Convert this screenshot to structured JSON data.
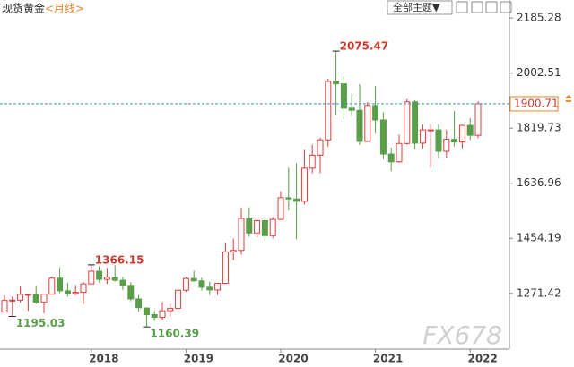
{
  "chart_data": {
    "type": "candlestick",
    "title": "现货黄金",
    "subtitle": "<月线>",
    "categories": [
      null,
      null,
      null,
      null,
      null,
      null,
      null,
      null,
      null,
      null,
      null,
      "2018",
      null,
      null,
      null,
      null,
      null,
      null,
      null,
      null,
      null,
      null,
      null,
      "2019",
      null,
      null,
      null,
      null,
      null,
      null,
      null,
      null,
      null,
      null,
      null,
      "2020",
      null,
      null,
      null,
      null,
      null,
      null,
      null,
      null,
      null,
      null,
      null,
      "2021",
      null,
      null,
      null,
      null,
      null,
      null,
      null,
      null,
      null,
      null,
      null,
      "2022",
      null
    ],
    "open": [
      1210,
      1248,
      1249,
      1268,
      1268,
      1242,
      1269,
      1322,
      1280,
      1271,
      1275,
      1303,
      1345,
      1318,
      1325,
      1315,
      1298,
      1253,
      1223,
      1201,
      1192,
      1214,
      1222,
      1282,
      1321,
      1313,
      1292,
      1283,
      1305,
      1409,
      1414,
      1520,
      1472,
      1513,
      1463,
      1517,
      1589,
      1585,
      1577,
      1687,
      1730,
      1781,
      1975,
      1967,
      1886,
      1879,
      1776,
      1895,
      1847,
      1734,
      1708,
      1769,
      1907,
      1770,
      1814,
      1814,
      1743,
      1783,
      1774,
      1829,
      1796
    ],
    "high": [
      1264,
      1261,
      1295,
      1270,
      1296,
      1270,
      1326,
      1357,
      1306,
      1299,
      1309,
      1366.15,
      1362,
      1356,
      1365,
      1326,
      1309,
      1266,
      1224,
      1214,
      1243,
      1237,
      1284,
      1326,
      1347,
      1324,
      1310,
      1306,
      1439,
      1453,
      1555,
      1557,
      1517,
      1516,
      1525,
      1611,
      1689,
      1704,
      1748,
      1765,
      1789,
      1984,
      2075.47,
      1992,
      1933,
      1966,
      1906,
      1959,
      1873,
      1755,
      1798,
      1916,
      1913,
      1832,
      1834,
      1834,
      1814,
      1877,
      1831,
      1853,
      1909
    ],
    "low": [
      1209,
      1195.03,
      1241,
      1214,
      1236,
      1205,
      1267,
      1272,
      1261,
      1264,
      1236,
      1302,
      1307,
      1303,
      1310,
      1282,
      1245,
      1211,
      1160.39,
      1180,
      1183,
      1196,
      1221,
      1276,
      1311,
      1281,
      1266,
      1266,
      1302,
      1381,
      1400,
      1459,
      1459,
      1445,
      1454,
      1517,
      1547,
      1451,
      1567,
      1670,
      1670,
      1757,
      1863,
      1849,
      1860,
      1764,
      1775,
      1802,
      1717,
      1677,
      1705,
      1765,
      1750,
      1751,
      1688,
      1721,
      1722,
      1759,
      1753,
      1780,
      1786
    ],
    "close": [
      1248,
      1249,
      1268,
      1268,
      1242,
      1269,
      1322,
      1280,
      1271,
      1275,
      1303,
      1345,
      1318,
      1325,
      1315,
      1298,
      1253,
      1224,
      1201,
      1192,
      1214,
      1222,
      1282,
      1321,
      1313,
      1292,
      1283,
      1305,
      1409,
      1414,
      1520,
      1472,
      1513,
      1463,
      1517,
      1589,
      1585,
      1577,
      1687,
      1730,
      1781,
      1975,
      1967,
      1886,
      1879,
      1776,
      1895,
      1847,
      1734,
      1708,
      1769,
      1907,
      1770,
      1814,
      1814,
      1743,
      1783,
      1774,
      1829,
      1796,
      1900.71
    ],
    "ylim": [
      1086.6,
      2245
    ],
    "yticks": [
      1271.42,
      1454.19,
      1636.96,
      1819.73,
      2002.51,
      2185.28
    ],
    "up_color": "#e23b3b",
    "down_color": "#5a9e4b",
    "price_line_color": "#3a8fb0",
    "label_high_color": "#d33a2c",
    "label_low_color": "#5a9e4b",
    "grid": false
  },
  "toolbar": {
    "label": "全部主题▼"
  },
  "watermark": "FX678"
}
